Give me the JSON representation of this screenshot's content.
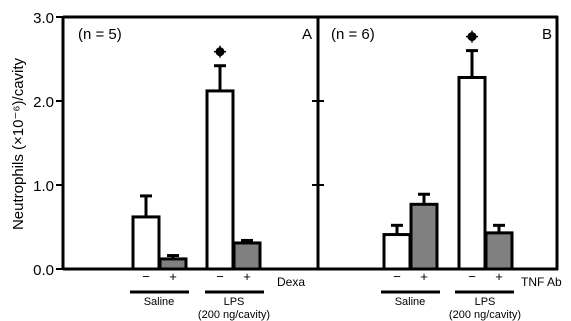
{
  "chart_data": {
    "type": "bar",
    "ylabel": "Neutrophils (×10⁻⁶)/cavity",
    "ylim": [
      0,
      3.0
    ],
    "yticks": [
      "0.0",
      "1.0",
      "2.0",
      "3.0"
    ],
    "colors": {
      "white_bar": "#ffffff",
      "grey_bar": "#808080",
      "stroke": "#000000"
    },
    "panels": [
      {
        "label": "A",
        "n_label": "(n = 5)",
        "treatment_label": "Dexa",
        "groups": [
          {
            "label": "Saline",
            "sublabel": "",
            "bars": [
              {
                "sign": "−",
                "value": 0.62,
                "error": 0.25,
                "fill": "white",
                "star": false
              },
              {
                "sign": "+",
                "value": 0.12,
                "error": 0.04,
                "fill": "grey",
                "star": false
              }
            ]
          },
          {
            "label": "LPS",
            "sublabel": "(200 ng/cavity)",
            "bars": [
              {
                "sign": "−",
                "value": 2.12,
                "error": 0.3,
                "fill": "white",
                "star": true
              },
              {
                "sign": "+",
                "value": 0.31,
                "error": 0.03,
                "fill": "grey",
                "star": false
              }
            ]
          }
        ]
      },
      {
        "label": "B",
        "n_label": "(n = 6)",
        "treatment_label": "TNF Ab",
        "groups": [
          {
            "label": "Saline",
            "sublabel": "",
            "bars": [
              {
                "sign": "−",
                "value": 0.41,
                "error": 0.11,
                "fill": "white",
                "star": false
              },
              {
                "sign": "+",
                "value": 0.77,
                "error": 0.12,
                "fill": "grey",
                "star": false
              }
            ]
          },
          {
            "label": "LPS",
            "sublabel": "(200 ng/cavity)",
            "bars": [
              {
                "sign": "−",
                "value": 2.28,
                "error": 0.32,
                "fill": "white",
                "star": true
              },
              {
                "sign": "+",
                "value": 0.43,
                "error": 0.09,
                "fill": "grey",
                "star": false
              }
            ]
          }
        ]
      }
    ]
  }
}
